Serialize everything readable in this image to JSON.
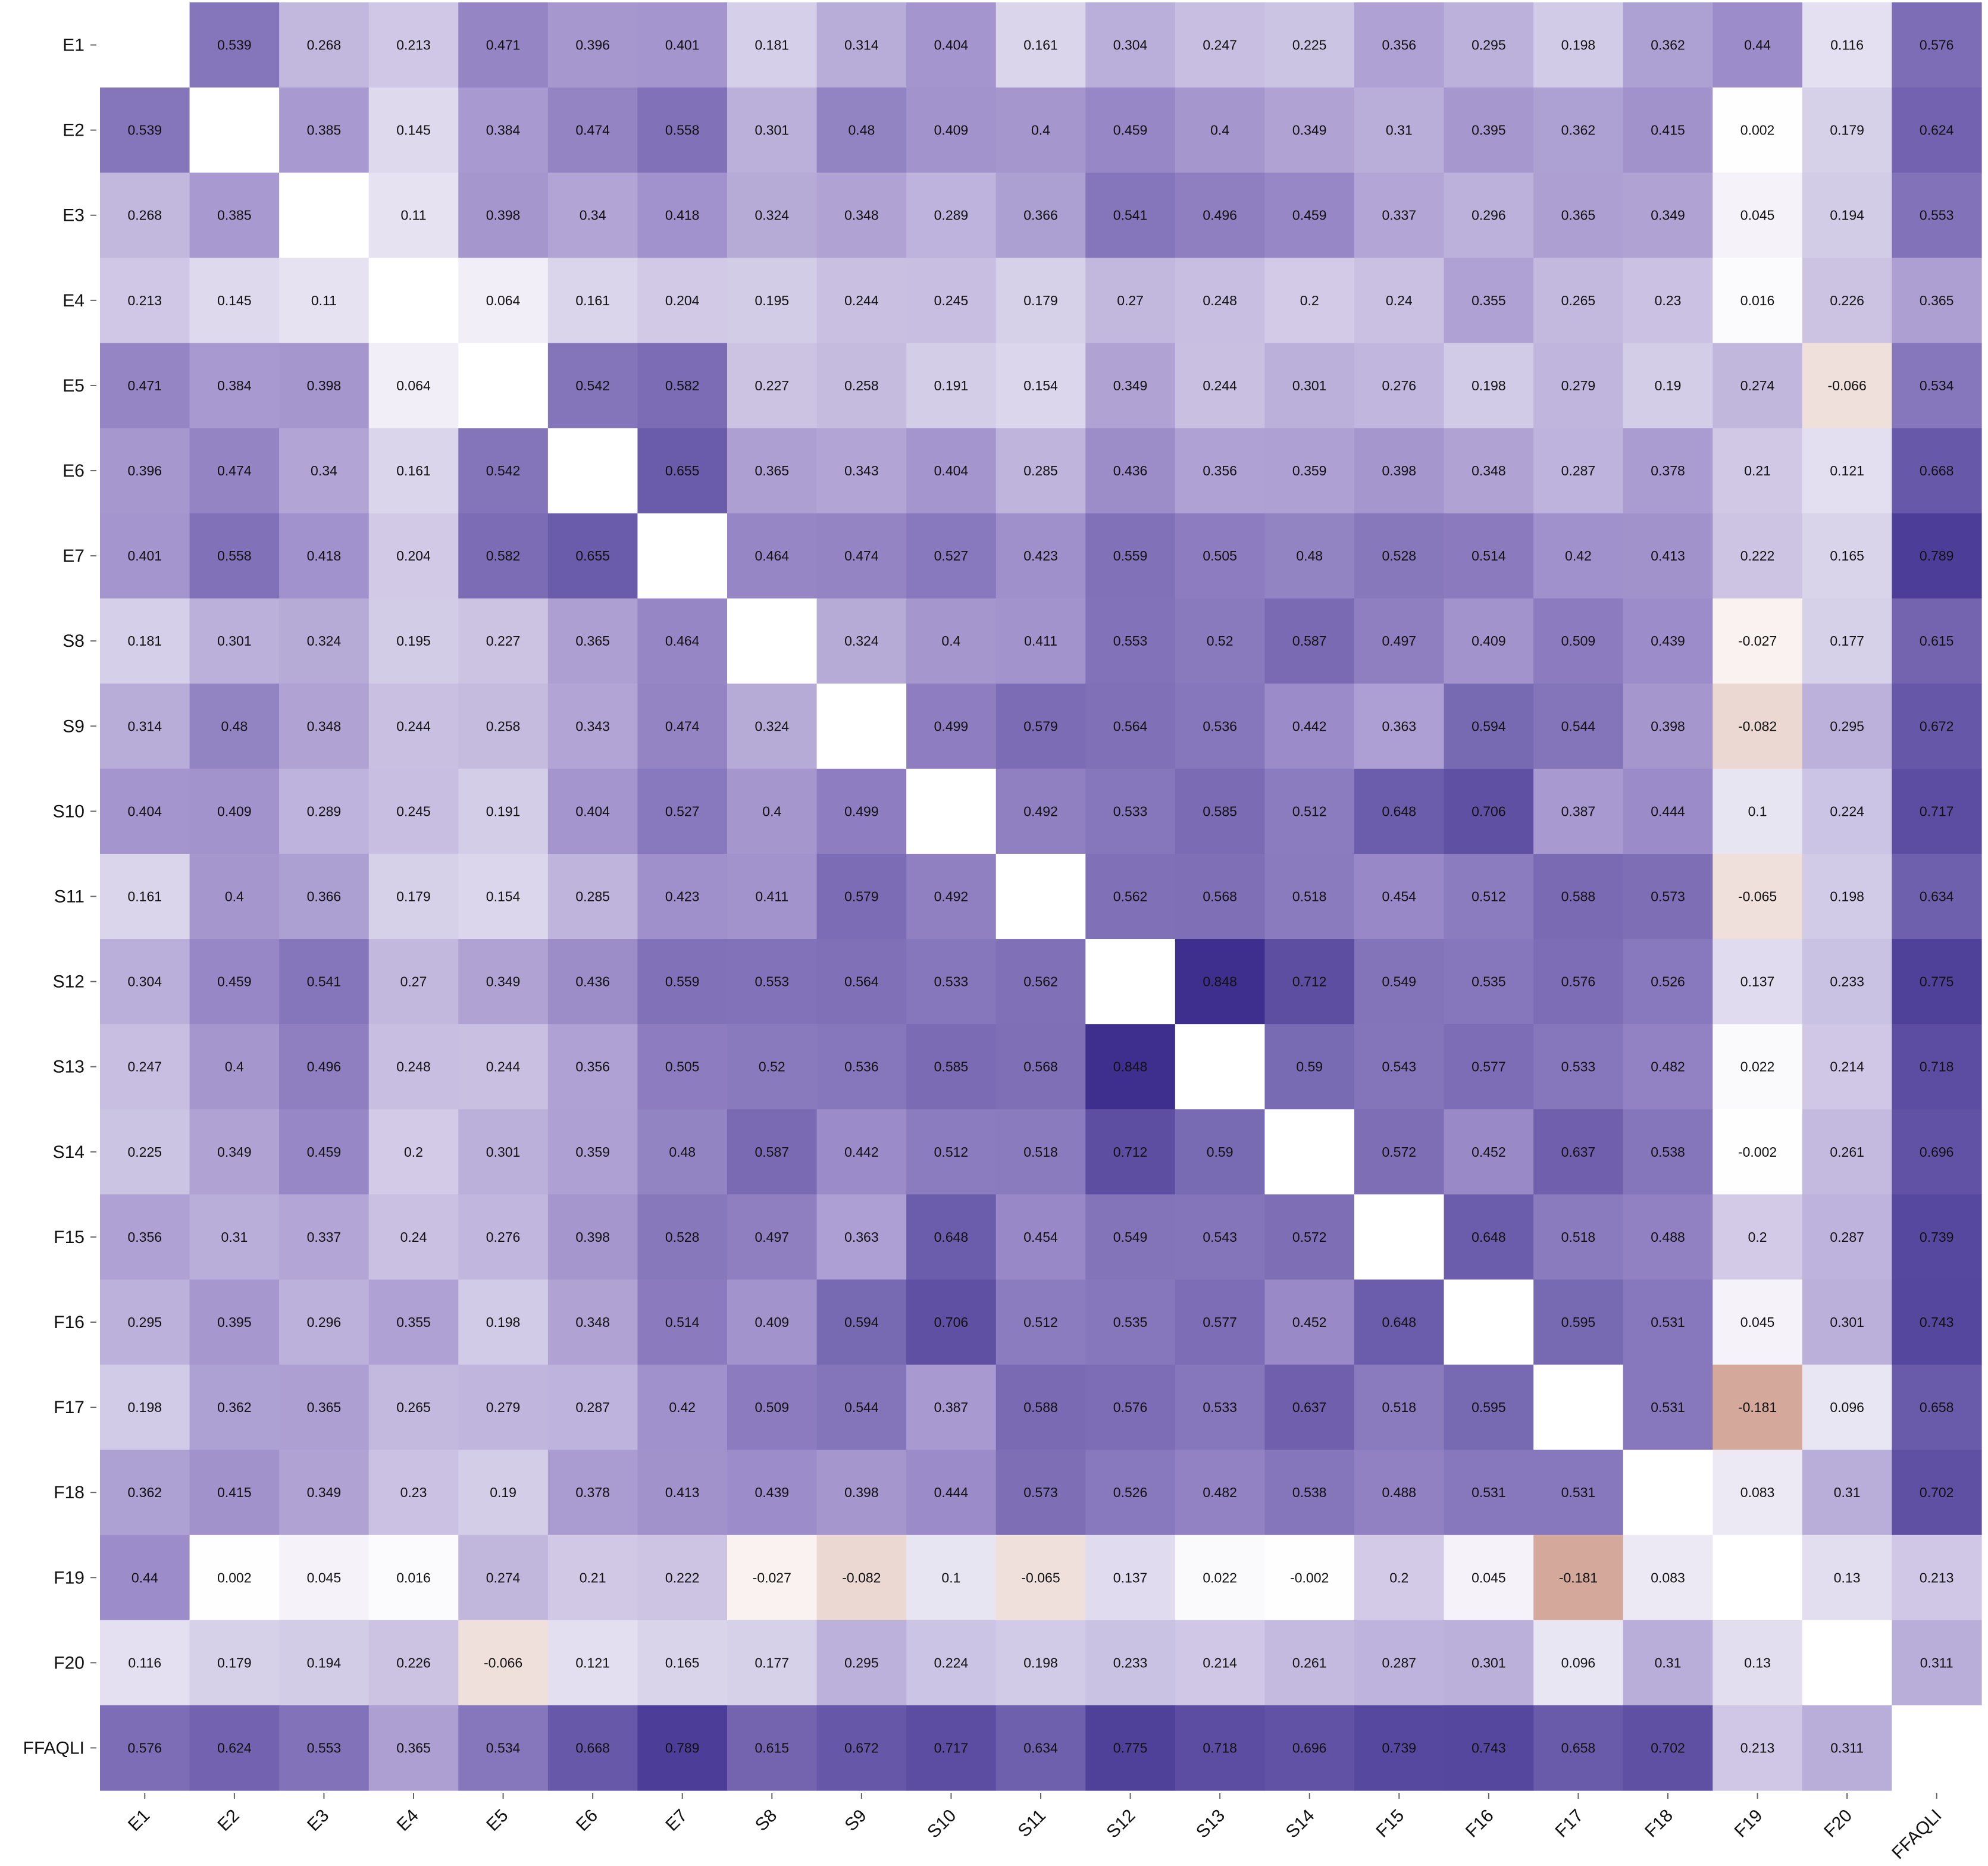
{
  "chart_data": {
    "type": "heatmap",
    "title": "",
    "xlabel": "",
    "ylabel": "",
    "rows": [
      "E1",
      "E2",
      "E3",
      "E4",
      "E5",
      "E6",
      "E7",
      "S8",
      "S9",
      "S10",
      "S11",
      "S12",
      "S13",
      "S14",
      "F15",
      "F16",
      "F17",
      "F18",
      "F19",
      "F20",
      "FFAQLI"
    ],
    "columns": [
      "E1",
      "E2",
      "E3",
      "E4",
      "E5",
      "E6",
      "E7",
      "S8",
      "S9",
      "S10",
      "S11",
      "S12",
      "S13",
      "S14",
      "F15",
      "F16",
      "F17",
      "F18",
      "F19",
      "F20",
      "FFAQLI"
    ],
    "row_tick_labels": [
      "E1",
      "E2",
      "E3",
      "E4",
      "E5",
      "E6",
      "E7",
      "S8",
      "S9",
      "S10",
      "S11",
      "S12",
      "S13",
      "S14",
      "F15",
      "F16",
      "F17",
      "F18",
      "F19",
      "F20",
      "FFAQLI"
    ],
    "col_tick_labels": [
      "E1",
      "E2",
      "E3",
      "E4",
      "E5",
      "E6",
      "E7",
      "S8",
      "S9",
      "S10",
      "S11",
      "S12",
      "S13",
      "S14",
      "F15",
      "F16",
      "F17",
      "F18",
      "F19",
      "F20",
      "FFAQLI"
    ],
    "values": [
      [
        null,
        0.539,
        0.268,
        0.213,
        0.471,
        0.396,
        0.401,
        0.181,
        0.314,
        0.404,
        0.161,
        0.304,
        0.247,
        0.225,
        0.356,
        0.295,
        0.198,
        0.362,
        0.44,
        0.116,
        0.576
      ],
      [
        0.539,
        null,
        0.385,
        0.145,
        0.384,
        0.474,
        0.558,
        0.301,
        0.48,
        0.409,
        0.4,
        0.459,
        0.4,
        0.349,
        0.31,
        0.395,
        0.362,
        0.415,
        0.002,
        0.179,
        0.624
      ],
      [
        0.268,
        0.385,
        null,
        0.11,
        0.398,
        0.34,
        0.418,
        0.324,
        0.348,
        0.289,
        0.366,
        0.541,
        0.496,
        0.459,
        0.337,
        0.296,
        0.365,
        0.349,
        0.045,
        0.194,
        0.553
      ],
      [
        0.213,
        0.145,
        0.11,
        null,
        0.064,
        0.161,
        0.204,
        0.195,
        0.244,
        0.245,
        0.179,
        0.27,
        0.248,
        0.2,
        0.24,
        0.355,
        0.265,
        0.23,
        0.016,
        0.226,
        0.365
      ],
      [
        0.471,
        0.384,
        0.398,
        0.064,
        null,
        0.542,
        0.582,
        0.227,
        0.258,
        0.191,
        0.154,
        0.349,
        0.244,
        0.301,
        0.276,
        0.198,
        0.279,
        0.19,
        0.274,
        -0.066,
        0.534
      ],
      [
        0.396,
        0.474,
        0.34,
        0.161,
        0.542,
        null,
        0.655,
        0.365,
        0.343,
        0.404,
        0.285,
        0.436,
        0.356,
        0.359,
        0.398,
        0.348,
        0.287,
        0.378,
        0.21,
        0.121,
        0.668
      ],
      [
        0.401,
        0.558,
        0.418,
        0.204,
        0.582,
        0.655,
        null,
        0.464,
        0.474,
        0.527,
        0.423,
        0.559,
        0.505,
        0.48,
        0.528,
        0.514,
        0.42,
        0.413,
        0.222,
        0.165,
        0.789
      ],
      [
        0.181,
        0.301,
        0.324,
        0.195,
        0.227,
        0.365,
        0.464,
        null,
        0.324,
        0.4,
        0.411,
        0.553,
        0.52,
        0.587,
        0.497,
        0.409,
        0.509,
        0.439,
        -0.027,
        0.177,
        0.615
      ],
      [
        0.314,
        0.48,
        0.348,
        0.244,
        0.258,
        0.343,
        0.474,
        0.324,
        null,
        0.499,
        0.579,
        0.564,
        0.536,
        0.442,
        0.363,
        0.594,
        0.544,
        0.398,
        -0.082,
        0.295,
        0.672
      ],
      [
        0.404,
        0.409,
        0.289,
        0.245,
        0.191,
        0.404,
        0.527,
        0.4,
        0.499,
        null,
        0.492,
        0.533,
        0.585,
        0.512,
        0.648,
        0.706,
        0.387,
        0.444,
        0.1,
        0.224,
        0.717
      ],
      [
        0.161,
        0.4,
        0.366,
        0.179,
        0.154,
        0.285,
        0.423,
        0.411,
        0.579,
        0.492,
        null,
        0.562,
        0.568,
        0.518,
        0.454,
        0.512,
        0.588,
        0.573,
        -0.065,
        0.198,
        0.634
      ],
      [
        0.304,
        0.459,
        0.541,
        0.27,
        0.349,
        0.436,
        0.559,
        0.553,
        0.564,
        0.533,
        0.562,
        null,
        0.848,
        0.712,
        0.549,
        0.535,
        0.576,
        0.526,
        0.137,
        0.233,
        0.775
      ],
      [
        0.247,
        0.4,
        0.496,
        0.248,
        0.244,
        0.356,
        0.505,
        0.52,
        0.536,
        0.585,
        0.568,
        0.848,
        null,
        0.59,
        0.543,
        0.577,
        0.533,
        0.482,
        0.022,
        0.214,
        0.718
      ],
      [
        0.225,
        0.349,
        0.459,
        0.2,
        0.301,
        0.359,
        0.48,
        0.587,
        0.442,
        0.512,
        0.518,
        0.712,
        0.59,
        null,
        0.572,
        0.452,
        0.637,
        0.538,
        -0.002,
        0.261,
        0.696
      ],
      [
        0.356,
        0.31,
        0.337,
        0.24,
        0.276,
        0.398,
        0.528,
        0.497,
        0.363,
        0.648,
        0.454,
        0.549,
        0.543,
        0.572,
        null,
        0.648,
        0.518,
        0.488,
        0.2,
        0.287,
        0.739
      ],
      [
        0.295,
        0.395,
        0.296,
        0.355,
        0.198,
        0.348,
        0.514,
        0.409,
        0.594,
        0.706,
        0.512,
        0.535,
        0.577,
        0.452,
        0.648,
        null,
        0.595,
        0.531,
        0.045,
        0.301,
        0.743
      ],
      [
        0.198,
        0.362,
        0.365,
        0.265,
        0.279,
        0.287,
        0.42,
        0.509,
        0.544,
        0.387,
        0.588,
        0.576,
        0.533,
        0.637,
        0.518,
        0.595,
        null,
        0.531,
        -0.181,
        0.096,
        0.658
      ],
      [
        0.362,
        0.415,
        0.349,
        0.23,
        0.19,
        0.378,
        0.413,
        0.439,
        0.398,
        0.444,
        0.573,
        0.526,
        0.482,
        0.538,
        0.488,
        0.531,
        0.531,
        null,
        0.083,
        0.31,
        0.702
      ],
      [
        0.44,
        0.002,
        0.045,
        0.016,
        0.274,
        0.21,
        0.222,
        -0.027,
        -0.082,
        0.1,
        -0.065,
        0.137,
        0.022,
        -0.002,
        0.2,
        0.045,
        -0.181,
        0.083,
        null,
        0.13,
        0.213
      ],
      [
        0.116,
        0.179,
        0.194,
        0.226,
        -0.066,
        0.121,
        0.165,
        0.177,
        0.295,
        0.224,
        0.198,
        0.233,
        0.214,
        0.261,
        0.287,
        0.301,
        0.096,
        0.31,
        0.13,
        null,
        0.311
      ],
      [
        0.576,
        0.624,
        0.553,
        0.365,
        0.534,
        0.668,
        0.789,
        0.615,
        0.672,
        0.717,
        0.634,
        0.775,
        0.718,
        0.696,
        0.739,
        0.743,
        0.658,
        0.702,
        0.213,
        0.311,
        null
      ]
    ],
    "colormap": {
      "positive_light": "#ffffff",
      "positive_mid": "#9f8fcb",
      "positive_dark": "#3e2f8f",
      "negative": "#d4a99c"
    },
    "grid": false,
    "legend": "none"
  }
}
